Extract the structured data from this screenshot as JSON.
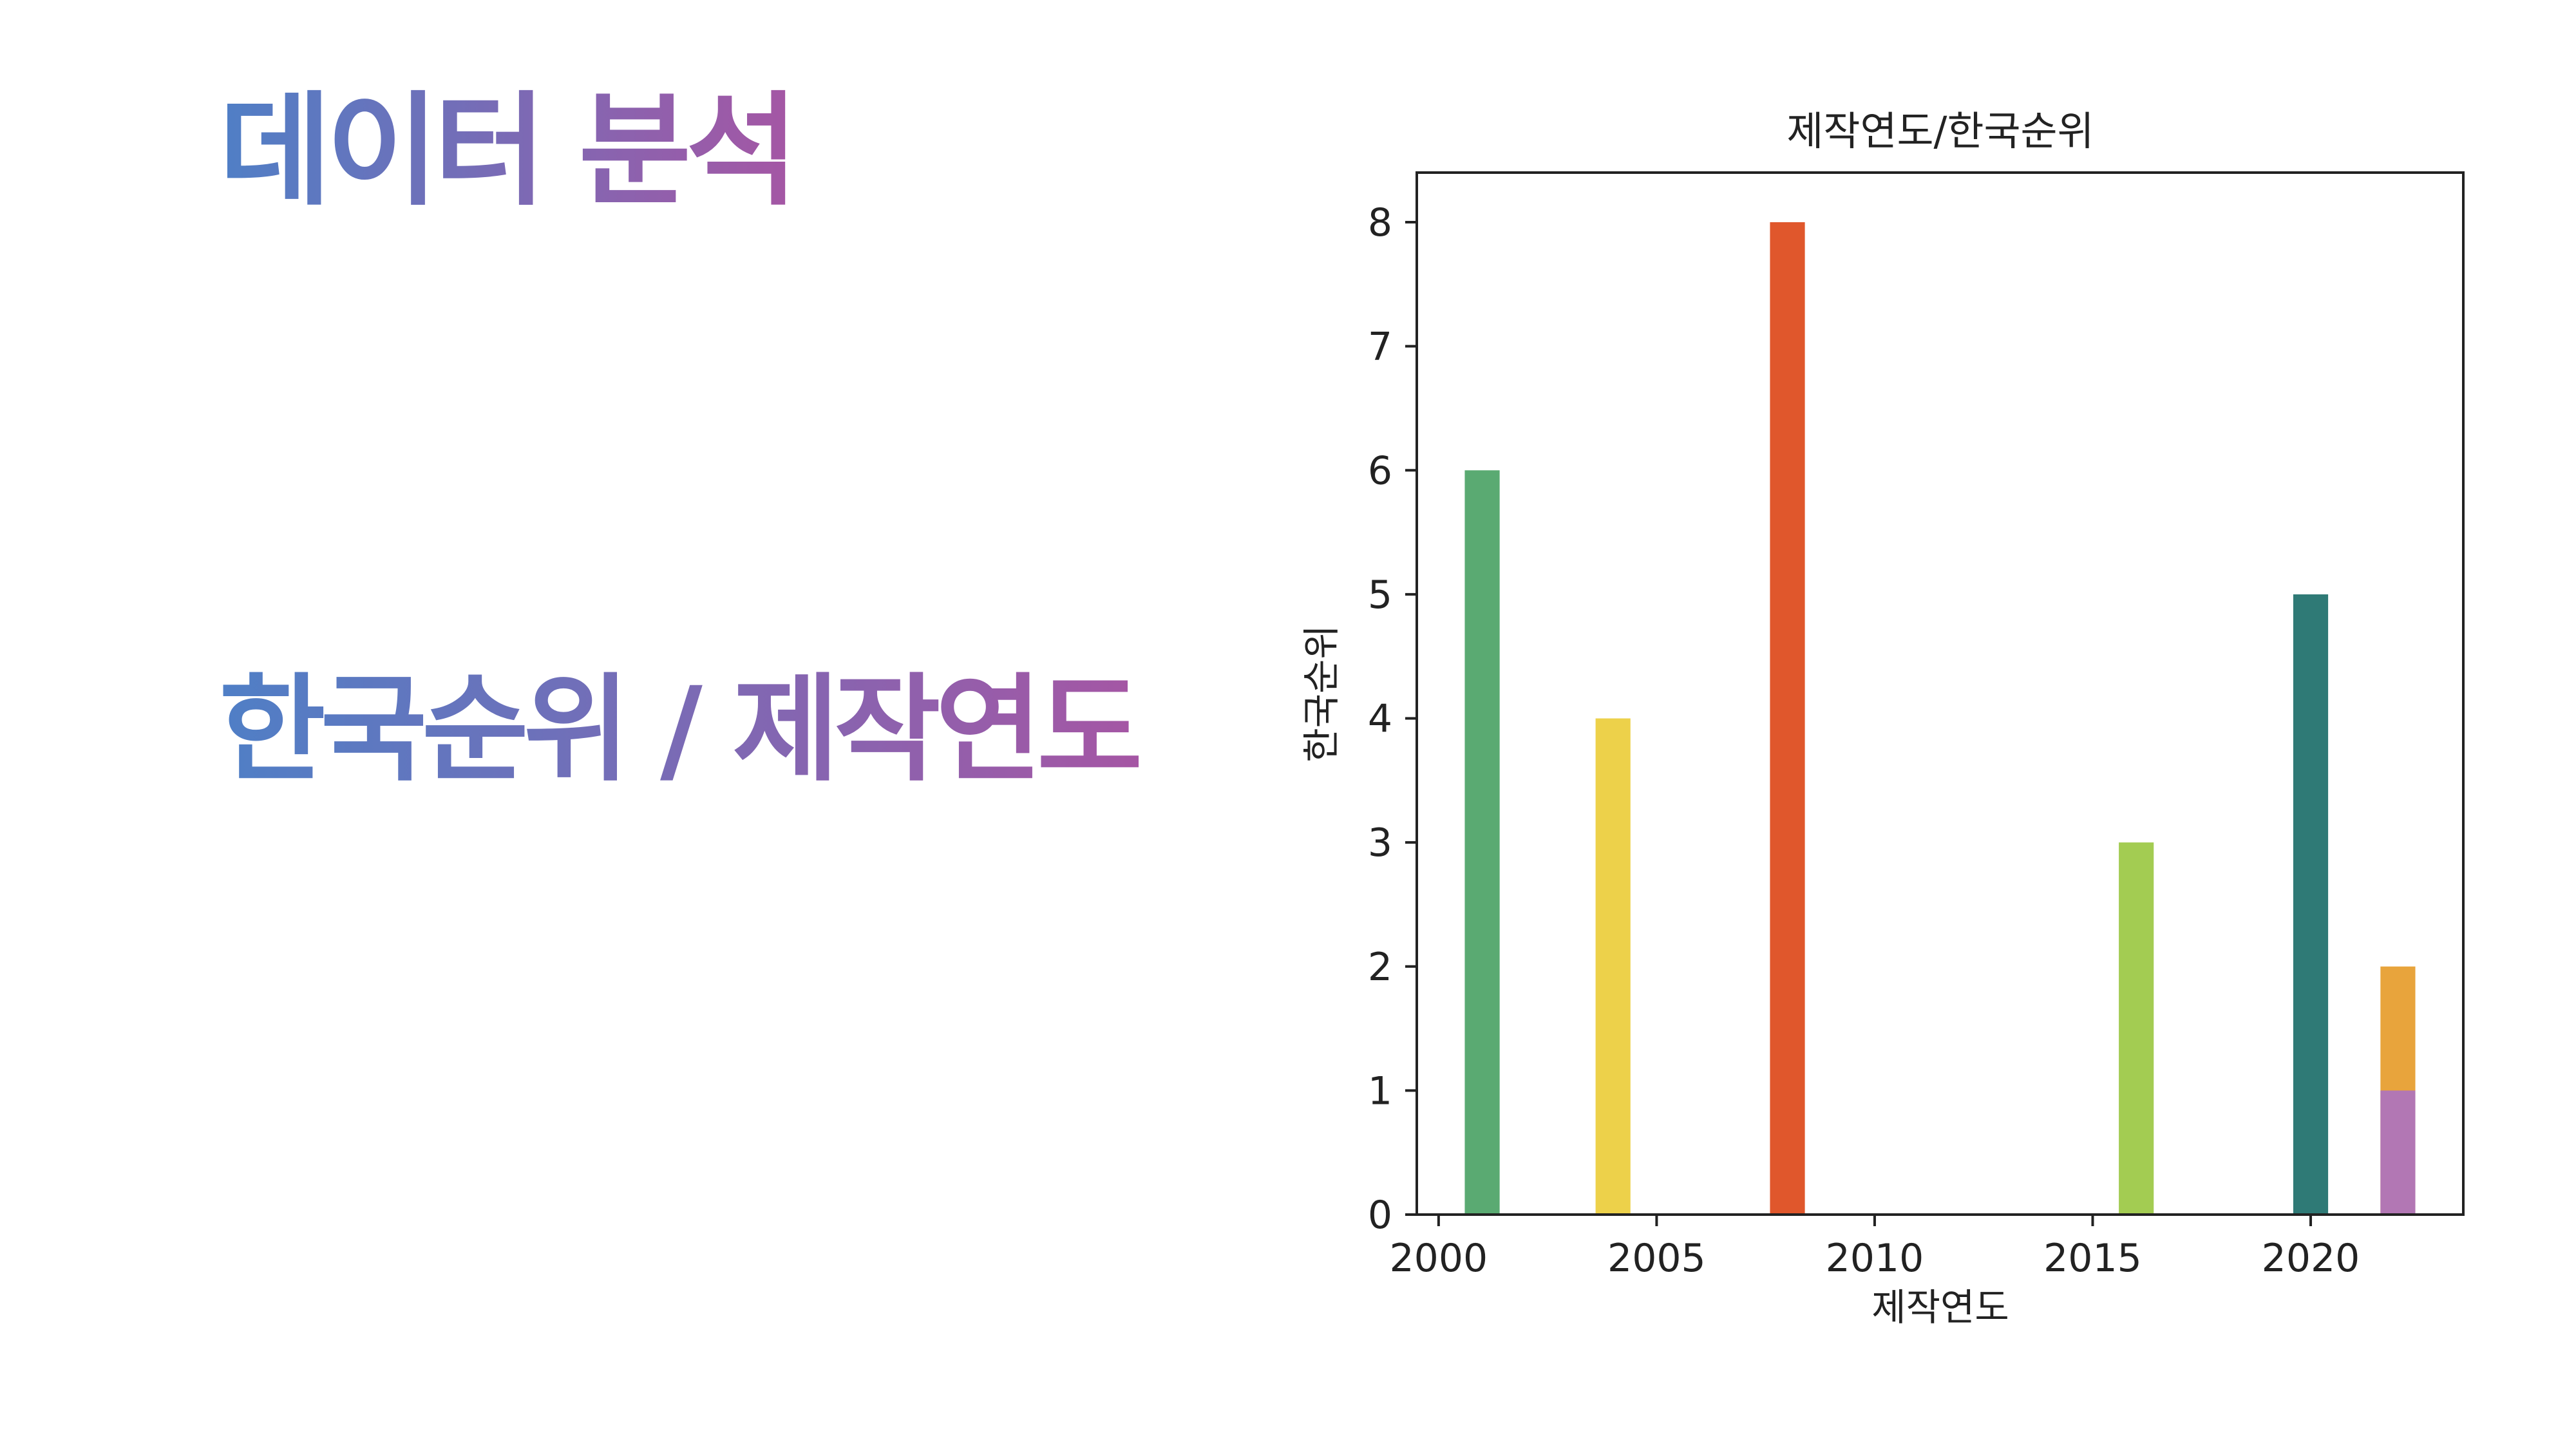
{
  "slide": {
    "title": "데이터 분석",
    "subtitle": "한국순위 / 제작연도"
  },
  "chart_data": {
    "type": "bar",
    "title": "제작연도/한국순위",
    "xlabel": "제작연도",
    "ylabel": "한국순위",
    "xlim": [
      1999.5,
      2023.5
    ],
    "ylim": [
      0,
      8.4
    ],
    "xticks": [
      2000,
      2005,
      2010,
      2015,
      2020
    ],
    "yticks": [
      0,
      1,
      2,
      3,
      4,
      5,
      6,
      7,
      8
    ],
    "grid": false,
    "legend": "none",
    "bar_width": 0.8,
    "bars": [
      {
        "x": 2001,
        "value": 6,
        "color": "#5aaa72"
      },
      {
        "x": 2004,
        "value": 4,
        "color": "#edd14a"
      },
      {
        "x": 2008,
        "value": 8,
        "color": "#e0572c"
      },
      {
        "x": 2016,
        "value": 3,
        "color": "#a3cc52"
      },
      {
        "x": 2020,
        "value": 5,
        "color": "#2f7a76"
      },
      {
        "x": 2022,
        "value": 2,
        "color": "#e8a43c"
      },
      {
        "x": 2022,
        "value": 1,
        "color": "#b277b4"
      }
    ]
  }
}
